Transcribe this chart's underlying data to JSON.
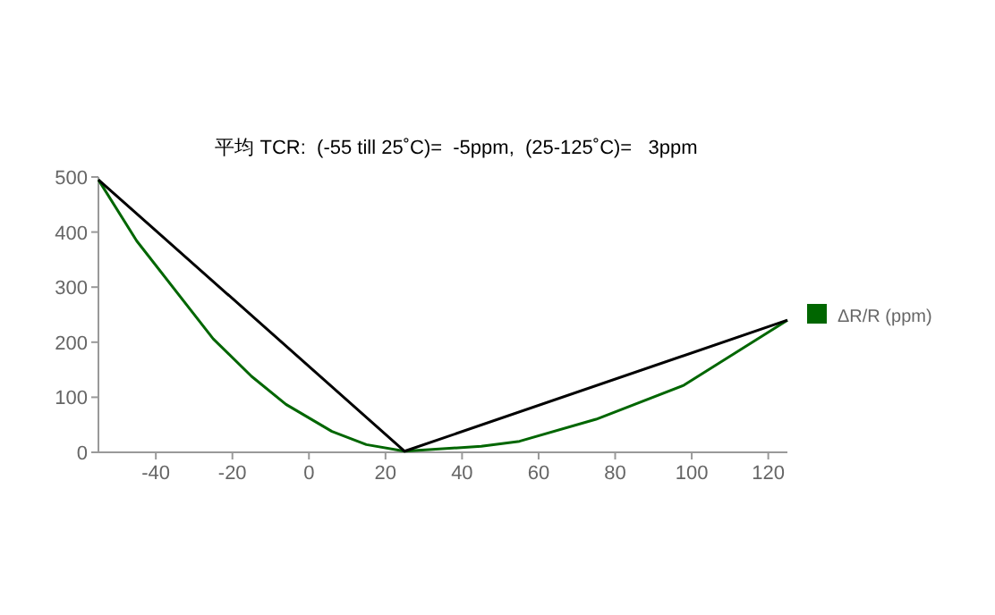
{
  "chart_data": {
    "type": "line",
    "title": "平均 TCR:  (-55 till 25˚C)=  -5ppm,  (25-125˚C)=   3ppm",
    "x": [
      -55,
      -45,
      -25,
      -15,
      -6,
      6,
      15,
      25,
      45,
      55,
      75,
      98,
      125
    ],
    "series": [
      {
        "name": "ΔR/R (ppm)",
        "color": "#006600",
        "values": [
          495,
          384,
          206,
          138,
          87,
          38,
          14,
          2,
          11,
          20,
          60,
          122,
          240
        ]
      },
      {
        "color": "#000000",
        "x": [
          -55,
          25,
          125
        ],
        "values": [
          495,
          2,
          240
        ]
      }
    ],
    "xlim": [
      -55,
      125
    ],
    "ylim": [
      0,
      500
    ],
    "xticks": [
      -40,
      -20,
      0,
      20,
      40,
      60,
      80,
      100,
      120
    ],
    "yticks": [
      0,
      100,
      200,
      300,
      400,
      500
    ],
    "grid": false,
    "legend": "right",
    "marker": "none",
    "line_style": "solid"
  }
}
